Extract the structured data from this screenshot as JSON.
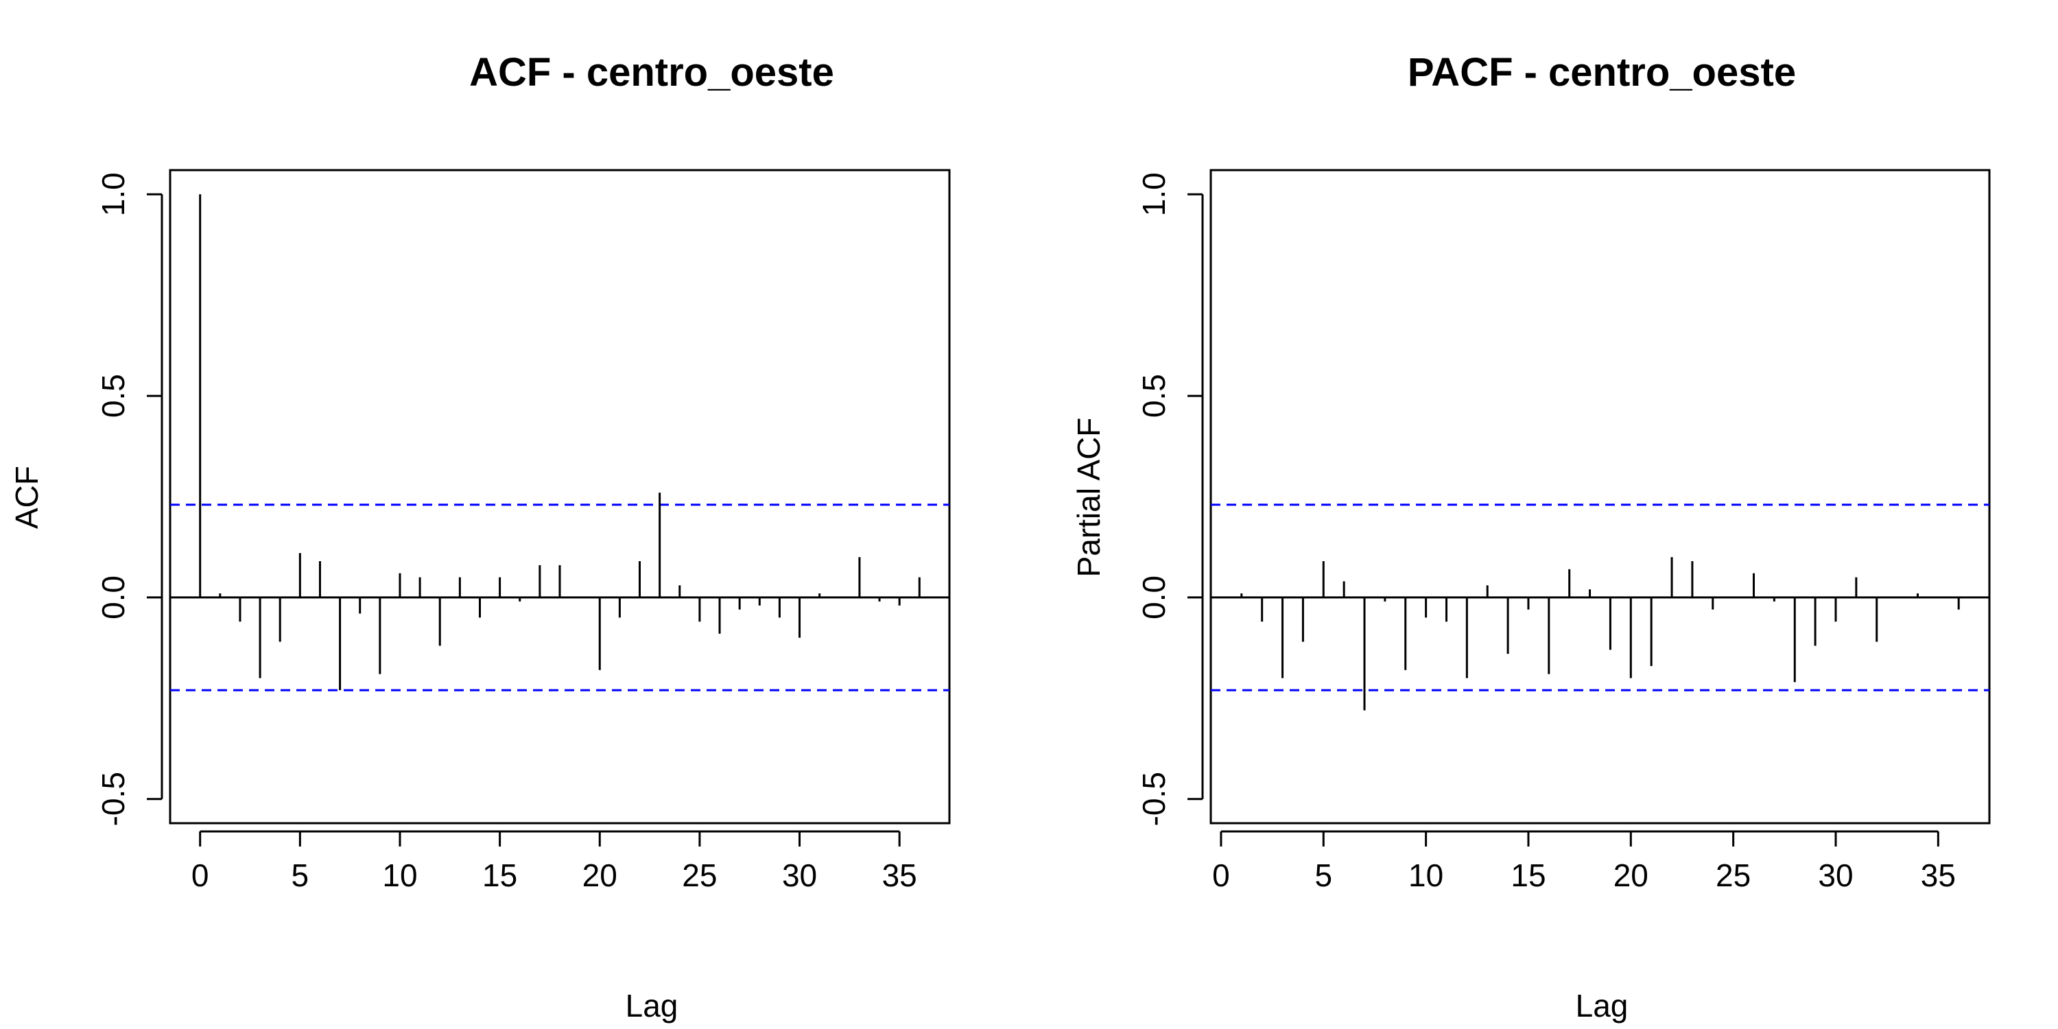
{
  "chart_data": [
    {
      "type": "bar",
      "subtype": "acf-spike",
      "title": "ACF - centro_oeste",
      "xlabel": "Lag",
      "ylabel": "ACF",
      "xlim": [
        -1.5,
        37.5
      ],
      "ylim": [
        -0.56,
        1.06
      ],
      "x_ticks": [
        0,
        5,
        10,
        15,
        20,
        25,
        30,
        35
      ],
      "y_ticks": [
        -0.5,
        0.0,
        0.5,
        1.0
      ],
      "y_tick_labels": [
        "-0.5",
        "0.0",
        "0.5",
        "1.0"
      ],
      "confidence_bound": 0.23,
      "confidence_color": "#0000ff",
      "grid": false,
      "x": [
        0,
        1,
        2,
        3,
        4,
        5,
        6,
        7,
        8,
        9,
        10,
        11,
        12,
        13,
        14,
        15,
        16,
        17,
        18,
        19,
        20,
        21,
        22,
        23,
        24,
        25,
        26,
        27,
        28,
        29,
        30,
        31,
        32,
        33,
        34,
        35,
        36
      ],
      "values": [
        1.0,
        0.01,
        -0.06,
        -0.2,
        -0.11,
        0.11,
        0.09,
        -0.23,
        -0.04,
        -0.19,
        0.06,
        0.05,
        -0.12,
        0.05,
        -0.05,
        0.05,
        -0.01,
        0.08,
        0.08,
        0.0,
        -0.18,
        -0.05,
        0.09,
        0.26,
        0.03,
        -0.06,
        -0.09,
        -0.03,
        -0.02,
        -0.05,
        -0.1,
        0.01,
        0.0,
        0.1,
        -0.01,
        -0.02,
        0.05
      ]
    },
    {
      "type": "bar",
      "subtype": "acf-spike",
      "title": "PACF - centro_oeste",
      "xlabel": "Lag",
      "ylabel": "Partial ACF",
      "xlim": [
        -0.5,
        37.5
      ],
      "ylim": [
        -0.56,
        1.06
      ],
      "x_ticks": [
        0,
        5,
        10,
        15,
        20,
        25,
        30,
        35
      ],
      "y_ticks": [
        -0.5,
        0.0,
        0.5,
        1.0
      ],
      "y_tick_labels": [
        "-0.5",
        "0.0",
        "0.5",
        "1.0"
      ],
      "confidence_bound": 0.23,
      "confidence_color": "#0000ff",
      "grid": false,
      "x": [
        1,
        2,
        3,
        4,
        5,
        6,
        7,
        8,
        9,
        10,
        11,
        12,
        13,
        14,
        15,
        16,
        17,
        18,
        19,
        20,
        21,
        22,
        23,
        24,
        25,
        26,
        27,
        28,
        29,
        30,
        31,
        32,
        33,
        34,
        35,
        36
      ],
      "values": [
        0.01,
        -0.06,
        -0.2,
        -0.11,
        0.09,
        0.04,
        -0.28,
        -0.01,
        -0.18,
        -0.05,
        -0.06,
        -0.2,
        0.03,
        -0.14,
        -0.03,
        -0.19,
        0.07,
        0.02,
        -0.13,
        -0.2,
        -0.17,
        0.1,
        0.09,
        -0.03,
        0.0,
        0.06,
        -0.01,
        -0.21,
        -0.12,
        -0.06,
        0.05,
        -0.11,
        0.0,
        0.01,
        0.0,
        -0.03
      ]
    }
  ]
}
